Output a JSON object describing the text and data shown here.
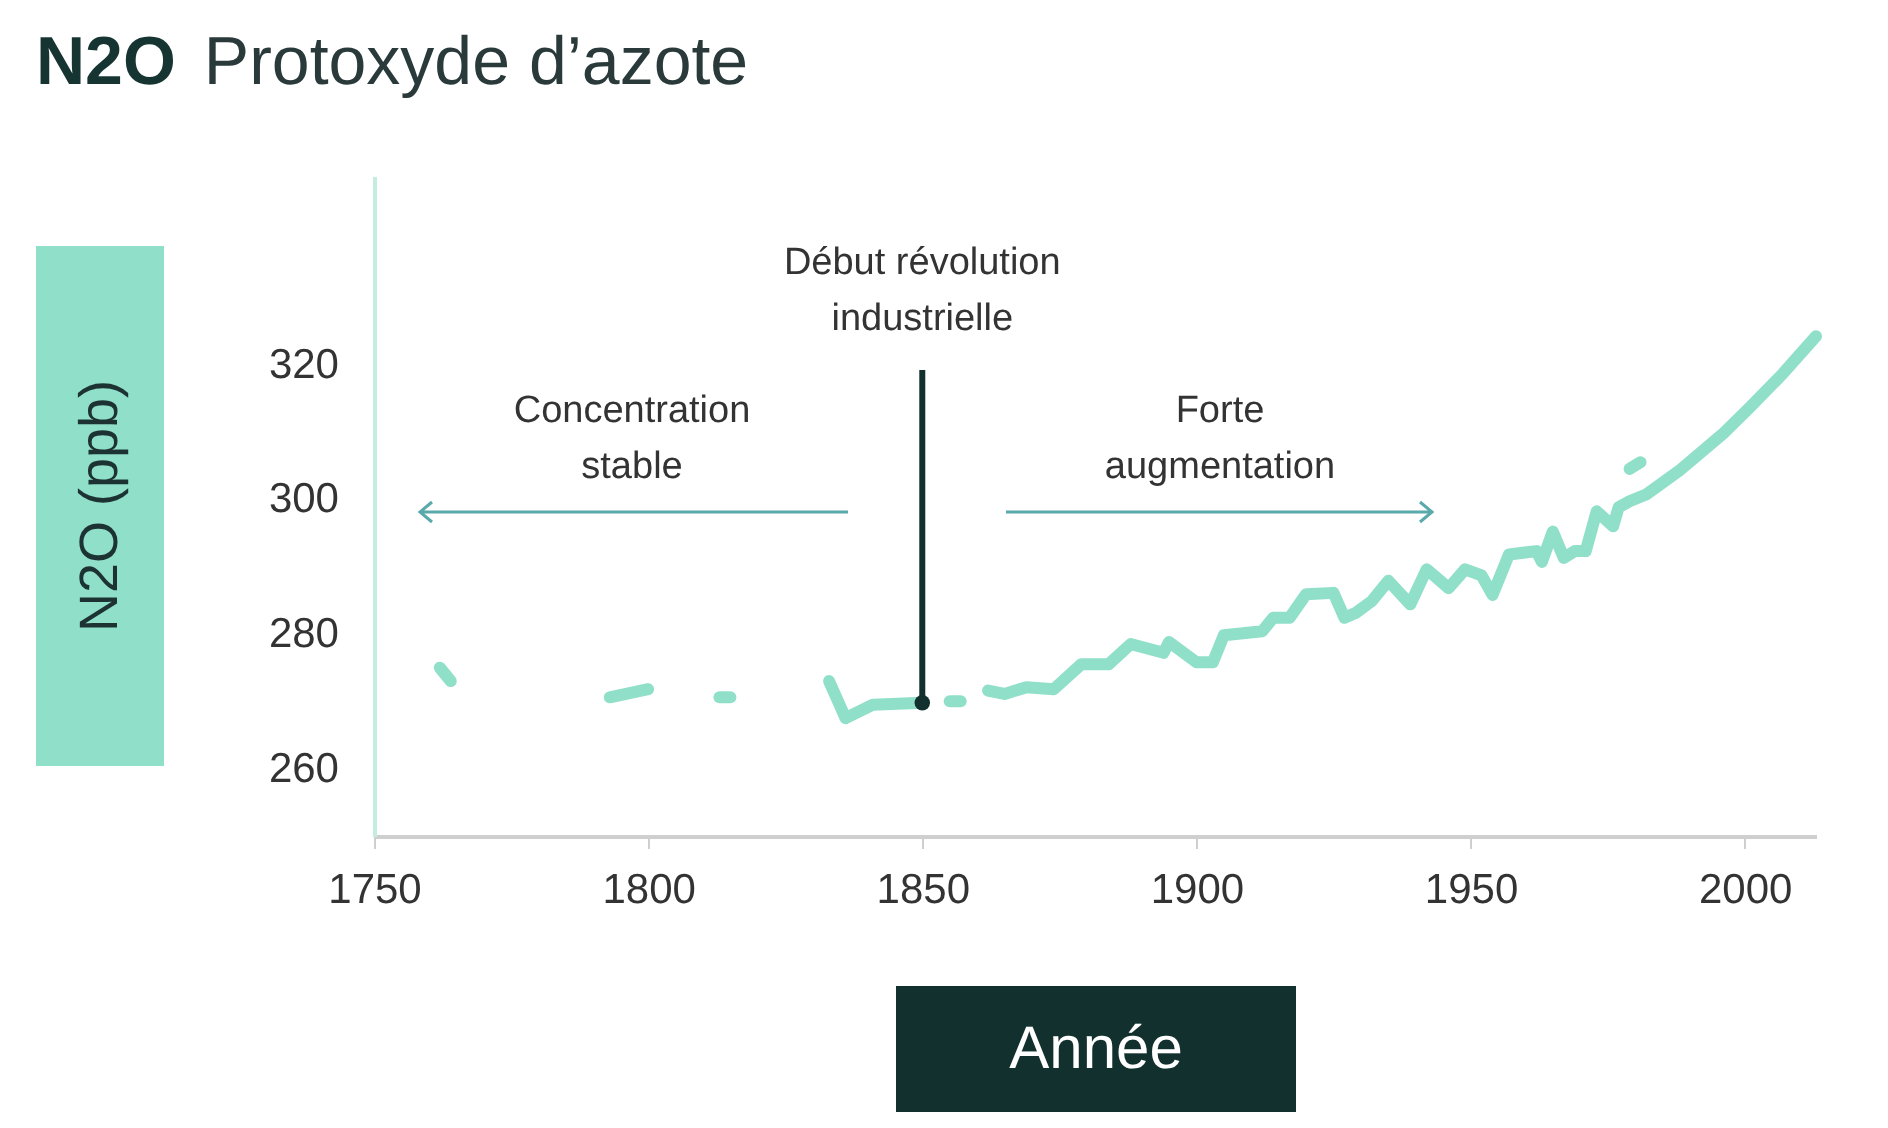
{
  "chart_data": {
    "type": "line",
    "title": "N2O",
    "subtitle": "Protoxyde d’azote",
    "xlabel": "Année",
    "ylabel": "N2O (ppb)",
    "xlim": [
      1750,
      2013
    ],
    "xticks": [
      1750,
      1800,
      1850,
      1900,
      1950,
      2000
    ],
    "ylim": [
      250,
      348
    ],
    "yticks": [
      260,
      280,
      300,
      320
    ],
    "ref_lines": [
      {
        "axis": "x",
        "value": 1850,
        "label": "Début révolution industrielle",
        "color": "#12302e"
      }
    ],
    "annotations": [
      "Concentration stable",
      "Forte augmentation"
    ],
    "series": [
      {
        "color": "#8fdfc9",
        "x": [
          1762,
          1764
        ],
        "values": [
          275,
          273
        ]
      },
      {
        "color": "#8fdfc9",
        "x": [
          1793,
          1800
        ],
        "values": [
          270.6,
          271.8
        ]
      },
      {
        "color": "#8fdfc9",
        "x": [
          1813,
          1815
        ],
        "values": [
          270.6,
          270.6
        ]
      },
      {
        "color": "#8fdfc9",
        "x": [
          1833,
          1836,
          1841,
          1850
        ],
        "values": [
          273,
          267.5,
          269.5,
          269.8
        ]
      },
      {
        "color": "#8fdfc9",
        "x": [
          1855,
          1857
        ],
        "values": [
          270,
          270
        ]
      },
      {
        "color": "#8fdfc9",
        "x": [
          1862,
          1865,
          1869,
          1874,
          1879,
          1884,
          1888,
          1894,
          1895,
          1900,
          1903,
          1905,
          1912,
          1914,
          1917,
          1920,
          1925,
          1927,
          1929,
          1932,
          1935,
          1939,
          1942,
          1946,
          1949,
          1952,
          1954,
          1957,
          1962,
          1963,
          1965,
          1967,
          1969,
          1971,
          1973,
          1976,
          1977,
          1979,
          1982,
          1988,
          1996,
          2001,
          2007,
          2013
        ],
        "values": [
          271.6,
          271.1,
          272.1,
          271.8,
          275.5,
          275.5,
          278.5,
          277.2,
          278.8,
          275.8,
          275.8,
          279.8,
          280.4,
          282.4,
          282.4,
          285.9,
          286.1,
          282.4,
          283.1,
          284.9,
          287.9,
          284.4,
          289.6,
          286.8,
          289.6,
          288.7,
          285.8,
          291.8,
          292.3,
          290.7,
          295.2,
          291.3,
          292.3,
          292.3,
          298.2,
          296,
          298.8,
          299.7,
          300.7,
          304.2,
          309.7,
          313.7,
          318.7,
          324.2
        ]
      },
      {
        "color": "#8fdfc9",
        "x": [
          1979,
          1981
        ],
        "values": [
          304.5,
          305.5
        ]
      }
    ]
  }
}
